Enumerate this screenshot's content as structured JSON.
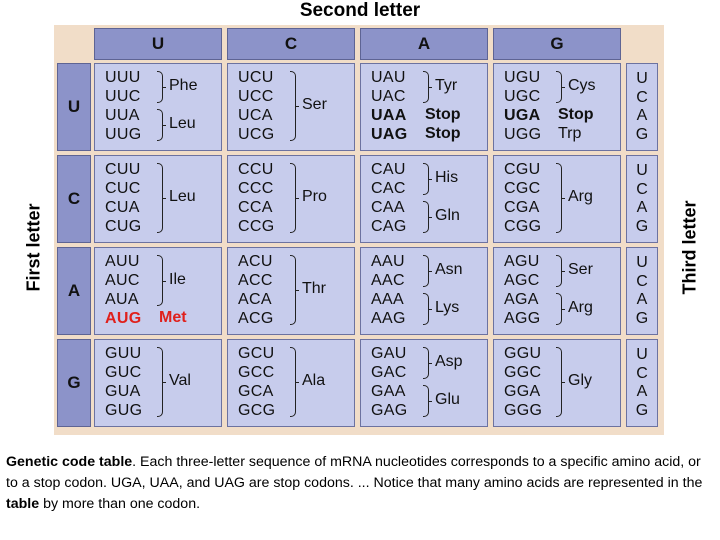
{
  "title": "Second letter",
  "first_letter_label": "First letter",
  "third_letter_label": "Third letter",
  "columns": [
    "U",
    "C",
    "A",
    "G"
  ],
  "rows": [
    "U",
    "C",
    "A",
    "G"
  ],
  "third_letters": [
    "U",
    "C",
    "A",
    "G"
  ],
  "cells": [
    [
      {
        "codons": [
          "UUU",
          "UUC",
          "UUA",
          "UUG"
        ],
        "groups": [
          {
            "aa": "Phe",
            "from": 0,
            "to": 1
          },
          {
            "aa": "Leu",
            "from": 2,
            "to": 3
          }
        ]
      },
      {
        "codons": [
          "UCU",
          "UCC",
          "UCA",
          "UCG"
        ],
        "groups": [
          {
            "aa": "Ser",
            "from": 0,
            "to": 3
          }
        ]
      },
      {
        "codons": [
          "UAU",
          "UAC",
          "UAA",
          "UAG"
        ],
        "bold": [
          2,
          3
        ],
        "groups": [
          {
            "aa": "Tyr",
            "from": 0,
            "to": 1
          }
        ],
        "singles": [
          {
            "aa": "Stop",
            "row": 2,
            "bold": true
          },
          {
            "aa": "Stop",
            "row": 3,
            "bold": true
          }
        ]
      },
      {
        "codons": [
          "UGU",
          "UGC",
          "UGA",
          "UGG"
        ],
        "bold": [
          2
        ],
        "groups": [
          {
            "aa": "Cys",
            "from": 0,
            "to": 1
          }
        ],
        "singles": [
          {
            "aa": "Stop",
            "row": 2,
            "bold": true
          },
          {
            "aa": "Trp",
            "row": 3
          }
        ]
      }
    ],
    [
      {
        "codons": [
          "CUU",
          "CUC",
          "CUA",
          "CUG"
        ],
        "groups": [
          {
            "aa": "Leu",
            "from": 0,
            "to": 3
          }
        ]
      },
      {
        "codons": [
          "CCU",
          "CCC",
          "CCA",
          "CCG"
        ],
        "groups": [
          {
            "aa": "Pro",
            "from": 0,
            "to": 3
          }
        ]
      },
      {
        "codons": [
          "CAU",
          "CAC",
          "CAA",
          "CAG"
        ],
        "groups": [
          {
            "aa": "His",
            "from": 0,
            "to": 1
          },
          {
            "aa": "Gln",
            "from": 2,
            "to": 3
          }
        ]
      },
      {
        "codons": [
          "CGU",
          "CGC",
          "CGA",
          "CGG"
        ],
        "groups": [
          {
            "aa": "Arg",
            "from": 0,
            "to": 3
          }
        ]
      }
    ],
    [
      {
        "codons": [
          "AUU",
          "AUC",
          "AUA",
          "AUG"
        ],
        "red": [
          3
        ],
        "groups": [
          {
            "aa": "Ile",
            "from": 0,
            "to": 2
          }
        ],
        "singles": [
          {
            "aa": "Met",
            "row": 3,
            "red": true
          }
        ]
      },
      {
        "codons": [
          "ACU",
          "ACC",
          "ACA",
          "ACG"
        ],
        "groups": [
          {
            "aa": "Thr",
            "from": 0,
            "to": 3
          }
        ]
      },
      {
        "codons": [
          "AAU",
          "AAC",
          "AAA",
          "AAG"
        ],
        "groups": [
          {
            "aa": "Asn",
            "from": 0,
            "to": 1
          },
          {
            "aa": "Lys",
            "from": 2,
            "to": 3
          }
        ]
      },
      {
        "codons": [
          "AGU",
          "AGC",
          "AGA",
          "AGG"
        ],
        "groups": [
          {
            "aa": "Ser",
            "from": 0,
            "to": 1
          },
          {
            "aa": "Arg",
            "from": 2,
            "to": 3
          }
        ]
      }
    ],
    [
      {
        "codons": [
          "GUU",
          "GUC",
          "GUA",
          "GUG"
        ],
        "groups": [
          {
            "aa": "Val",
            "from": 0,
            "to": 3
          }
        ]
      },
      {
        "codons": [
          "GCU",
          "GCC",
          "GCA",
          "GCG"
        ],
        "groups": [
          {
            "aa": "Ala",
            "from": 0,
            "to": 3
          }
        ]
      },
      {
        "codons": [
          "GAU",
          "GAC",
          "GAA",
          "GAG"
        ],
        "groups": [
          {
            "aa": "Asp",
            "from": 0,
            "to": 1
          },
          {
            "aa": "Glu",
            "from": 2,
            "to": 3
          }
        ]
      },
      {
        "codons": [
          "GGU",
          "GGC",
          "GGA",
          "GGG"
        ],
        "groups": [
          {
            "aa": "Gly",
            "from": 0,
            "to": 3
          }
        ]
      }
    ]
  ],
  "caption": {
    "part1_bold": "Genetic code table",
    "part2": ". Each three-letter sequence of mRNA nucleotides corresponds to a specific amino acid, or to a stop codon. UGA, UAA, and UAG are stop codons. ... Notice that many amino acids are represented in the ",
    "part3_bold": "table",
    "part4": " by more than one codon."
  },
  "colors": {
    "header": "#8c93c9",
    "cell": "#c7ccec",
    "frame": "#f1ddc8",
    "highlight": "#e0201c"
  }
}
